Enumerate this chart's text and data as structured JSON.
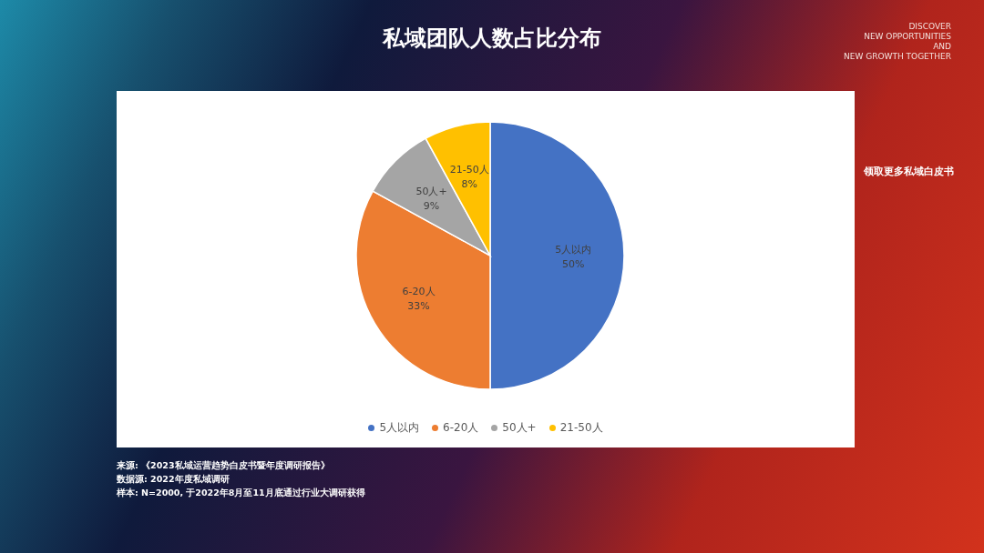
{
  "chart_data": {
    "type": "pie",
    "title": "私域团队人数占比分布",
    "categories": [
      "5人以内",
      "6-20人",
      "50人+",
      "21-50人"
    ],
    "values": [
      50,
      33,
      9,
      8
    ],
    "colors": [
      "#4472c4",
      "#ed7d31",
      "#a5a5a5",
      "#ffc000"
    ],
    "value_labels": [
      "50%",
      "33%",
      "9%",
      "8%"
    ],
    "legend": "bottom",
    "annotations": [
      "DISCOVER\nNEW OPPORTUNITIES\nAND\nNEW GROWTH TOGETHER",
      "领取更多私域白皮书",
      "来源: 《2023私域运营趋势白皮书暨年度调研报告》",
      "数据源: 2022年度私域调研",
      "样本: N=2000, 于2022年8月至11月底通过行业大调研获得"
    ]
  }
}
